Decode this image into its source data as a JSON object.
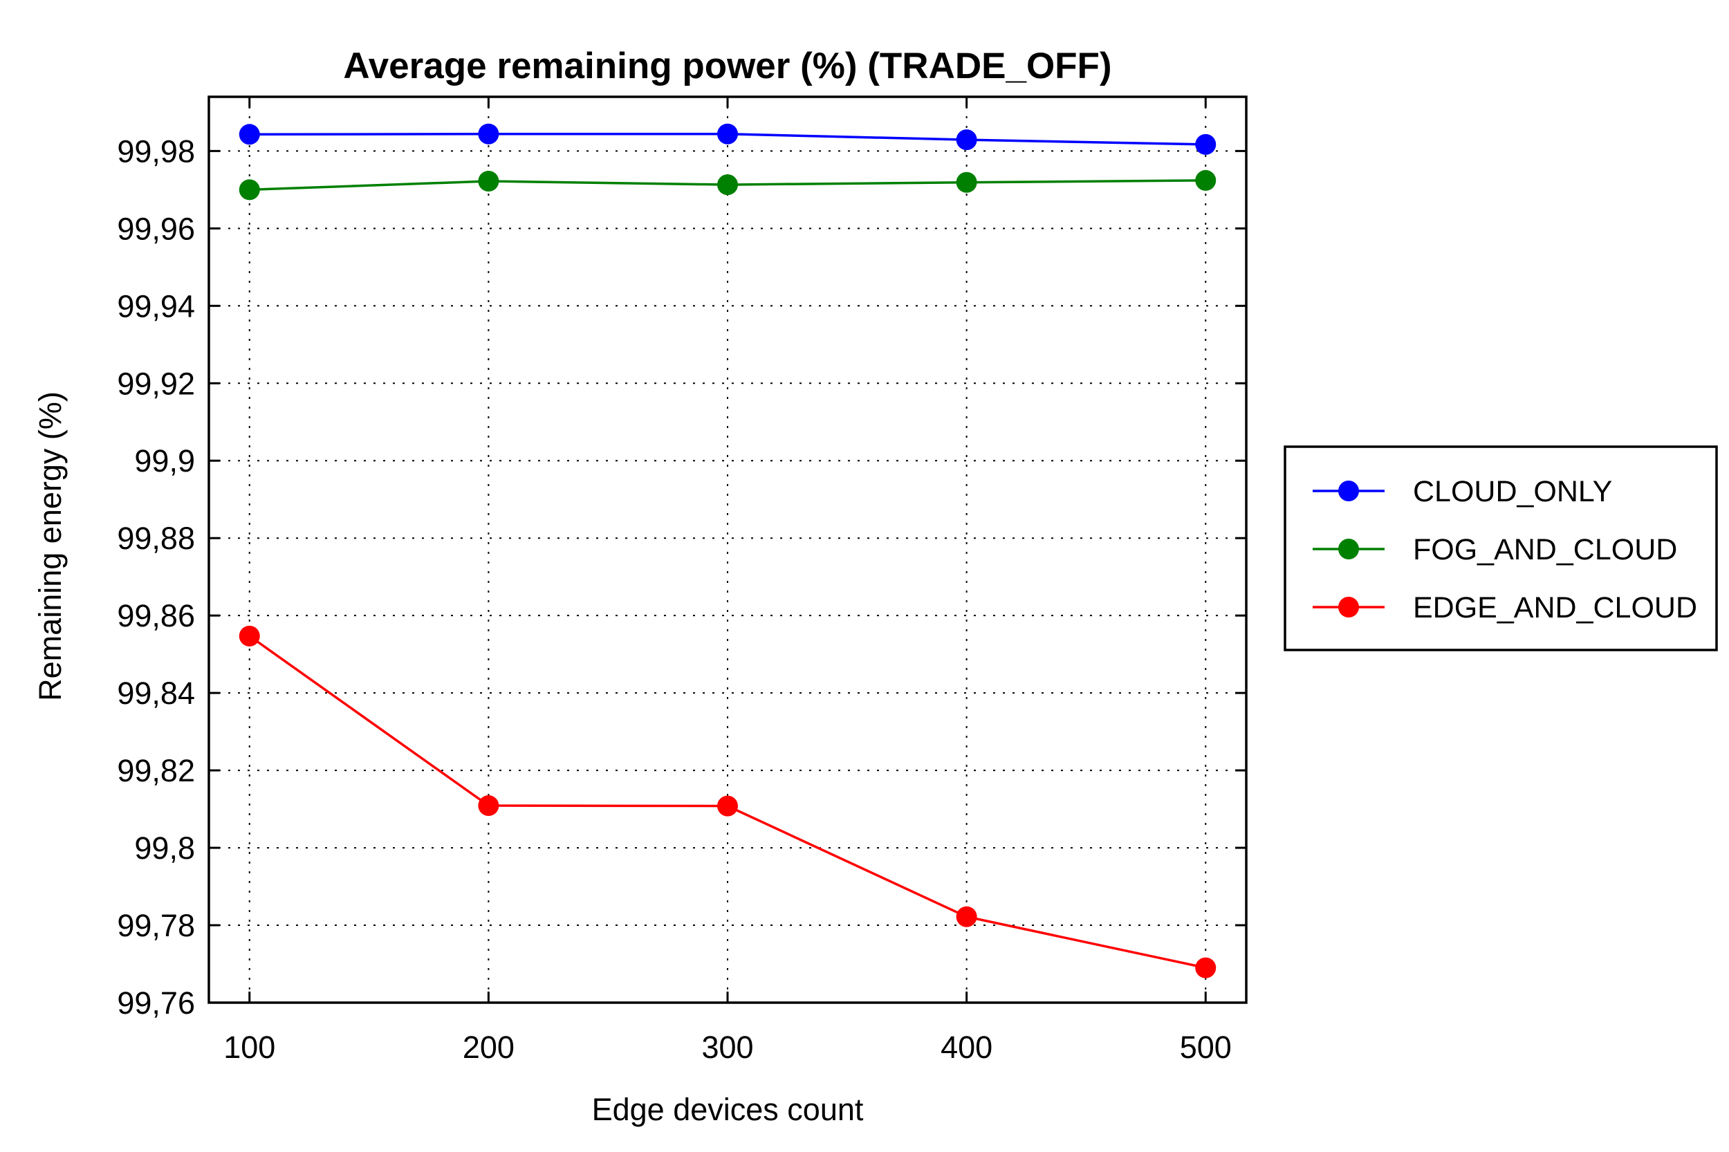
{
  "chart_data": {
    "type": "line",
    "title": "Average remaining power (%) (TRADE_OFF)",
    "xlabel": "Edge devices count",
    "ylabel": "Remaining energy (%)",
    "x": [
      100,
      200,
      300,
      400,
      500
    ],
    "x_tick_labels": [
      "100",
      "200",
      "300",
      "400",
      "500"
    ],
    "y_ticks": [
      99.76,
      99.78,
      99.8,
      99.82,
      99.84,
      99.86,
      99.88,
      99.9,
      99.92,
      99.94,
      99.96,
      99.98
    ],
    "y_tick_labels": [
      "99,76",
      "99,78",
      "99,8",
      "99,82",
      "99,84",
      "99,86",
      "99,88",
      "99,9",
      "99,92",
      "99,94",
      "99,96",
      "99,98"
    ],
    "xlim": [
      83,
      517
    ],
    "ylim": [
      99.76,
      99.994
    ],
    "grid": true,
    "legend_position": "right",
    "series": [
      {
        "name": "CLOUD_ONLY",
        "color": "#0000ff",
        "values": [
          99.9843,
          99.9844,
          99.9844,
          99.9829,
          99.9817
        ]
      },
      {
        "name": "FOG_AND_CLOUD",
        "color": "#008000",
        "values": [
          99.97,
          99.9722,
          99.9713,
          99.9719,
          99.9724
        ]
      },
      {
        "name": "EDGE_AND_CLOUD",
        "color": "#ff0000",
        "values": [
          99.8547,
          99.8109,
          99.8108,
          99.7822,
          99.769
        ]
      }
    ]
  }
}
